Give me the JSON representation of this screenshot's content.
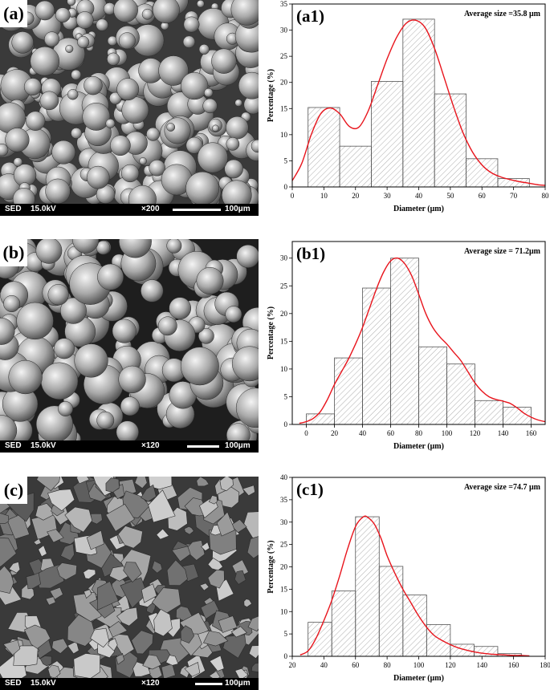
{
  "sem_images": [
    {
      "label": "(a)",
      "detector": "SED",
      "voltage": "15.0kV",
      "magnification": "×200",
      "scale": "100μm",
      "morphology": "spherical"
    },
    {
      "label": "(b)",
      "detector": "SED",
      "voltage": "15.0kV",
      "magnification": "×120",
      "scale": "100μm",
      "morphology": "spherical"
    },
    {
      "label": "(c)",
      "detector": "SED",
      "voltage": "15.0kV",
      "magnification": "×120",
      "scale": "100μm",
      "morphology": "angular"
    }
  ],
  "chart_data": [
    {
      "type": "bar",
      "panel_label": "(a1)",
      "annotation": "Average size =35.8 μm",
      "xlabel": "Diameter (μm)",
      "ylabel": "Percentage (%)",
      "xlim": [
        0,
        80
      ],
      "ylim": [
        0,
        35
      ],
      "xticks": [
        0,
        10,
        20,
        30,
        40,
        50,
        60,
        70,
        80
      ],
      "yticks": [
        0,
        5,
        10,
        15,
        20,
        25,
        30,
        35
      ],
      "bins": [
        [
          5,
          15
        ],
        [
          15,
          25
        ],
        [
          25,
          35
        ],
        [
          35,
          45
        ],
        [
          45,
          55
        ],
        [
          55,
          65
        ],
        [
          65,
          75
        ]
      ],
      "values": [
        15.2,
        7.8,
        20.2,
        32.1,
        17.8,
        5.4,
        1.6
      ],
      "fit_curve": {
        "color": "#e8141c",
        "x": [
          0,
          3,
          6,
          9,
          12,
          15,
          18,
          21,
          24,
          27,
          30,
          33,
          36,
          39,
          42,
          45,
          48,
          51,
          54,
          57,
          60,
          63,
          66,
          69,
          72,
          75,
          78,
          80
        ],
        "y": [
          1.2,
          4.5,
          10,
          14,
          15.1,
          14,
          11.6,
          11.4,
          14.5,
          19.5,
          24.5,
          28.6,
          31.3,
          31.9,
          30.5,
          26.5,
          21,
          15.4,
          10.4,
          6.7,
          4.2,
          2.7,
          1.9,
          1.4,
          1,
          0.7,
          0.4,
          0.3
        ]
      }
    },
    {
      "type": "bar",
      "panel_label": "(b1)",
      "annotation": "Average size = 71.2μm",
      "xlabel": "Diameter (μm)",
      "ylabel": "Percentage (%)",
      "xlim": [
        -10,
        170
      ],
      "ylim": [
        0,
        33
      ],
      "xticks": [
        0,
        20,
        40,
        60,
        80,
        100,
        120,
        140,
        160
      ],
      "yticks": [
        0,
        5,
        10,
        15,
        20,
        25,
        30
      ],
      "bins": [
        [
          0,
          20
        ],
        [
          20,
          40
        ],
        [
          40,
          60
        ],
        [
          60,
          80
        ],
        [
          80,
          100
        ],
        [
          100,
          120
        ],
        [
          120,
          140
        ],
        [
          140,
          160
        ]
      ],
      "values": [
        1.9,
        12,
        24.6,
        30,
        14,
        10.9,
        4.3,
        3.1
      ],
      "fit_curve": {
        "color": "#e8141c",
        "x": [
          -5,
          0,
          5,
          10,
          15,
          20,
          25,
          30,
          35,
          40,
          45,
          50,
          55,
          60,
          65,
          70,
          75,
          80,
          85,
          90,
          95,
          100,
          105,
          110,
          115,
          120,
          125,
          130,
          135,
          140,
          145,
          150,
          155,
          160,
          165,
          170
        ],
        "y": [
          0.2,
          0.5,
          1.1,
          2.3,
          4.5,
          7.2,
          9.5,
          11.8,
          14.5,
          17.5,
          21,
          24.5,
          27.5,
          29.5,
          30,
          29,
          26.8,
          23.5,
          20,
          17.5,
          15.8,
          14.5,
          13,
          11.5,
          9.5,
          7.5,
          6,
          5,
          4.5,
          4.2,
          3.8,
          3,
          2,
          1.3,
          0.8,
          0.5
        ]
      }
    },
    {
      "type": "bar",
      "panel_label": "(c1)",
      "annotation": "Average size =74.7 μm",
      "xlabel": "Diameter (μm)",
      "ylabel": "Percentage (%)",
      "xlim": [
        20,
        180
      ],
      "ylim": [
        0,
        40
      ],
      "xticks": [
        20,
        40,
        60,
        80,
        100,
        120,
        140,
        160,
        180
      ],
      "yticks": [
        0,
        5,
        10,
        15,
        20,
        25,
        30,
        35,
        40
      ],
      "bins": [
        [
          30,
          45
        ],
        [
          45,
          60
        ],
        [
          60,
          75
        ],
        [
          75,
          90
        ],
        [
          90,
          105
        ],
        [
          105,
          120
        ],
        [
          120,
          135
        ],
        [
          135,
          150
        ],
        [
          150,
          165
        ]
      ],
      "values": [
        7.6,
        14.6,
        31.2,
        20.1,
        13.7,
        7.1,
        2.7,
        2.2,
        0.6
      ],
      "fit_curve": {
        "color": "#e8141c",
        "x": [
          25,
          30,
          35,
          40,
          45,
          50,
          55,
          60,
          65,
          68,
          72,
          76,
          80,
          85,
          90,
          95,
          100,
          105,
          110,
          115,
          120,
          125,
          130,
          135,
          140,
          145,
          150,
          155,
          160,
          165,
          170
        ],
        "y": [
          0.3,
          1.2,
          4,
          8,
          12.5,
          18,
          24,
          29,
          31.2,
          31,
          29.5,
          26.5,
          22.5,
          18.5,
          15,
          12,
          9,
          6.5,
          4.6,
          3.5,
          2.6,
          1.9,
          1.4,
          1,
          0.7,
          0.5,
          0.4,
          0.3,
          0.2,
          0.2,
          0.1
        ]
      }
    }
  ]
}
